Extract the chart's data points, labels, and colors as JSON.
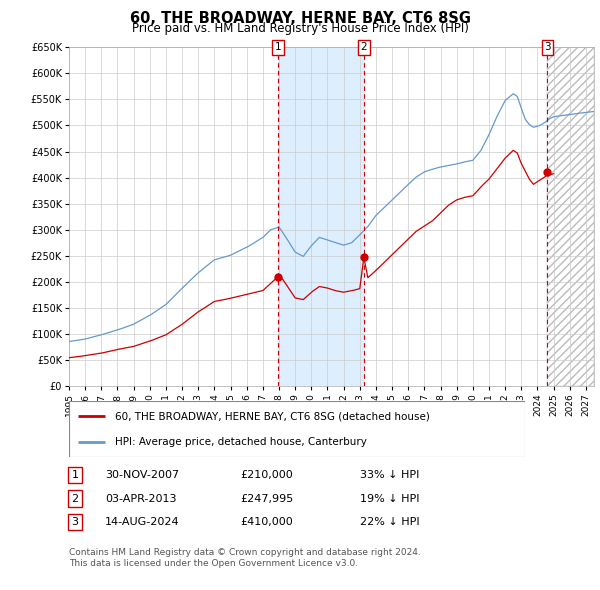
{
  "title": "60, THE BROADWAY, HERNE BAY, CT6 8SG",
  "subtitle": "Price paid vs. HM Land Registry's House Price Index (HPI)",
  "ylim": [
    0,
    650000
  ],
  "yticks": [
    0,
    50000,
    100000,
    150000,
    200000,
    250000,
    300000,
    350000,
    400000,
    450000,
    500000,
    550000,
    600000,
    650000
  ],
  "xlim_start": 1995.0,
  "xlim_end": 2027.5,
  "xticks": [
    1995,
    1996,
    1997,
    1998,
    1999,
    2000,
    2001,
    2002,
    2003,
    2004,
    2005,
    2006,
    2007,
    2008,
    2009,
    2010,
    2011,
    2012,
    2013,
    2014,
    2015,
    2016,
    2017,
    2018,
    2019,
    2020,
    2021,
    2022,
    2023,
    2024,
    2025,
    2026,
    2027
  ],
  "sale_dates": [
    2007.917,
    2013.253,
    2024.619
  ],
  "sale_prices": [
    210000,
    247995,
    410000
  ],
  "sale_labels": [
    "1",
    "2",
    "3"
  ],
  "shaded_start": 2007.917,
  "shaded_end": 2013.253,
  "hatch_start": 2024.619,
  "hatch_end": 2027.5,
  "legend_line1": "60, THE BROADWAY, HERNE BAY, CT6 8SG (detached house)",
  "legend_line2": "HPI: Average price, detached house, Canterbury",
  "table_rows": [
    [
      "1",
      "30-NOV-2007",
      "£210,000",
      "33% ↓ HPI"
    ],
    [
      "2",
      "03-APR-2013",
      "£247,995",
      "19% ↓ HPI"
    ],
    [
      "3",
      "14-AUG-2024",
      "£410,000",
      "22% ↓ HPI"
    ]
  ],
  "footnote1": "Contains HM Land Registry data © Crown copyright and database right 2024.",
  "footnote2": "This data is licensed under the Open Government Licence v3.0.",
  "red_color": "#cc0000",
  "blue_color": "#6699cc",
  "bg_color": "#ffffff",
  "grid_color": "#cccccc",
  "shaded_color": "#ddeeff",
  "hatch_color": "#bbbbbb"
}
